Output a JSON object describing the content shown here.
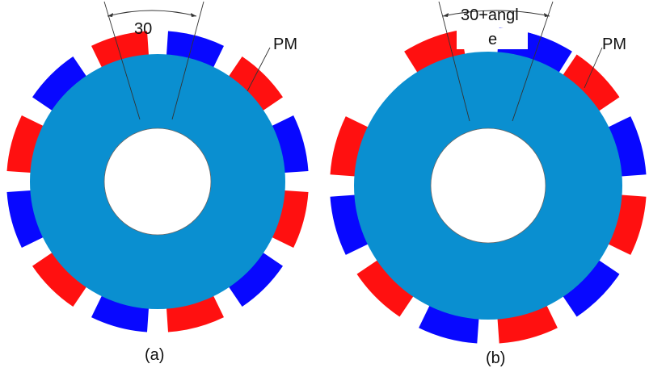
{
  "colors": {
    "rotor": "#0a8fd0",
    "magnet_red": "#ff1010",
    "magnet_blue": "#0808ff",
    "line": "#333333",
    "background": "#ffffff"
  },
  "figure_a": {
    "caption": "(a)",
    "angle_label": "30",
    "magnet_label": "PM"
  },
  "figure_b": {
    "caption": "(b)",
    "angle_label_line1": "30+angl",
    "angle_label_line2": "e",
    "magnet_label": "PM"
  }
}
